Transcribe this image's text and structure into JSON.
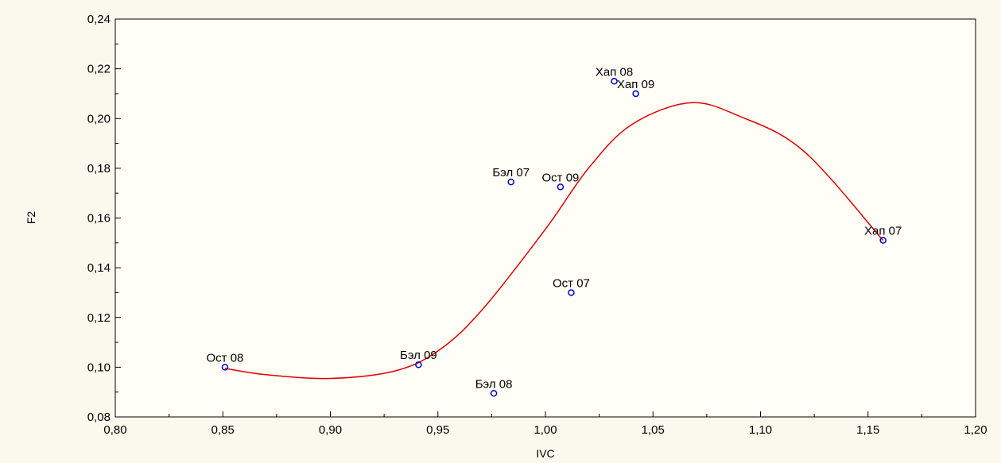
{
  "chart_data": {
    "type": "scatter",
    "xlabel": "IVC",
    "ylabel": "F2",
    "xlim": [
      0.8,
      1.2
    ],
    "ylim": [
      0.08,
      0.24
    ],
    "xticks": [
      "0,80",
      "0,85",
      "0,90",
      "0,95",
      "1,00",
      "1,05",
      "1,10",
      "1,15",
      "1,20"
    ],
    "yticks": [
      "0,08",
      "0,10",
      "0,12",
      "0,14",
      "0,16",
      "0,18",
      "0,20",
      "0,22",
      "0,24"
    ],
    "points": [
      {
        "label": "Ост 08",
        "x": 0.851,
        "y": 0.1
      },
      {
        "label": "Бэл 09",
        "x": 0.941,
        "y": 0.101
      },
      {
        "label": "Бэл 08",
        "x": 0.976,
        "y": 0.0895
      },
      {
        "label": "Бэл 07",
        "x": 0.984,
        "y": 0.1745
      },
      {
        "label": "Ост 09",
        "x": 1.007,
        "y": 0.1725
      },
      {
        "label": "Ост 07",
        "x": 1.012,
        "y": 0.13
      },
      {
        "label": "Хап 08",
        "x": 1.032,
        "y": 0.215
      },
      {
        "label": "Хап 09",
        "x": 1.042,
        "y": 0.21
      },
      {
        "label": "Хап 07",
        "x": 1.157,
        "y": 0.151
      }
    ],
    "fit_curve": {
      "x": [
        0.851,
        0.87,
        0.9,
        0.93,
        0.95,
        0.97,
        1.0,
        1.02,
        1.04,
        1.067,
        1.09,
        1.12,
        1.157
      ],
      "y": [
        0.0995,
        0.097,
        0.0955,
        0.0985,
        0.1065,
        0.1225,
        0.1555,
        0.18,
        0.1975,
        0.2063,
        0.201,
        0.187,
        0.151
      ]
    },
    "grid": false,
    "colors": {
      "points": "#0000cc",
      "curve": "#e00000"
    }
  }
}
